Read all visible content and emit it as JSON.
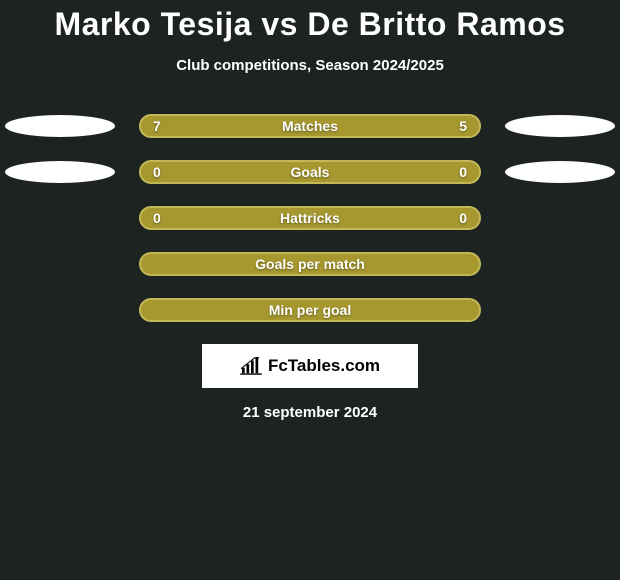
{
  "title": "Marko Tesija vs De Britto Ramos",
  "subtitle": "Club competitions, Season 2024/2025",
  "colors": {
    "background": "#1c2321",
    "bar_fill": "#a6982f",
    "bar_border": "#c3b857",
    "badge": "#ffffff",
    "text": "#ffffff"
  },
  "rows": [
    {
      "label": "Matches",
      "left": "7",
      "right": "5",
      "show_vals": true,
      "show_badges": true
    },
    {
      "label": "Goals",
      "left": "0",
      "right": "0",
      "show_vals": true,
      "show_badges": true
    },
    {
      "label": "Hattricks",
      "left": "0",
      "right": "0",
      "show_vals": true,
      "show_badges": false
    },
    {
      "label": "Goals per match",
      "left": "",
      "right": "",
      "show_vals": false,
      "show_badges": false
    },
    {
      "label": "Min per goal",
      "left": "",
      "right": "",
      "show_vals": false,
      "show_badges": false
    }
  ],
  "logo_text": "FcTables.com",
  "date": "21 september 2024"
}
